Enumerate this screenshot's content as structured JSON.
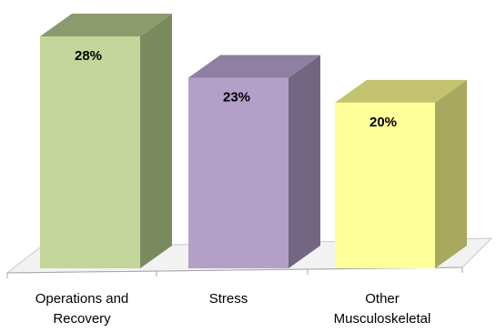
{
  "chart_data": {
    "type": "bar",
    "style": "3d-column",
    "categories": [
      [
        "Operations and",
        "Recovery"
      ],
      [
        "Stress"
      ],
      [
        "Other",
        "Musculoskeletal"
      ]
    ],
    "values": [
      28,
      23,
      20
    ],
    "data_labels": [
      "28%",
      "23%",
      "20%"
    ],
    "colors": {
      "front": [
        "#c4d59a",
        "#b3a0c9",
        "#ffff99"
      ],
      "top": [
        "#8c9a6e",
        "#8e7fa3",
        "#c3c36f"
      ],
      "side": [
        "#7b8a5e",
        "#736683",
        "#a8a85f"
      ]
    },
    "floor_color": "#f2f2f2",
    "floor_edge_color": "#c8c8c8",
    "ylim": [
      0,
      33
    ],
    "grid": false,
    "legend": "none",
    "title": "",
    "xlabel": "",
    "ylabel": ""
  }
}
